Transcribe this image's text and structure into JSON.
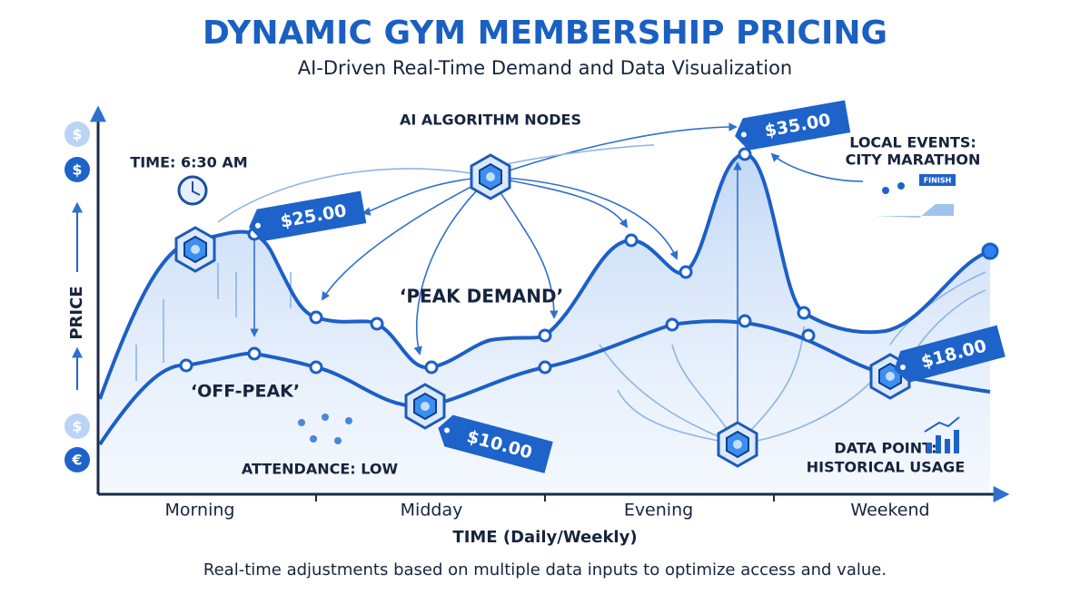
{
  "header": {
    "title": "DYNAMIC GYM MEMBERSHIP PRICING",
    "subtitle": "AI-Driven Real-Time Demand and Data Visualization"
  },
  "axes": {
    "y_label": "PRICE",
    "x_label": "TIME (Daily/Weekly)",
    "x_categories": [
      "Morning",
      "Midday",
      "Evening",
      "Weekend"
    ]
  },
  "currency_icons": [
    "$",
    "$",
    "$",
    "€"
  ],
  "price_tags": [
    "$25.00",
    "$10.00",
    "$35.00",
    "$18.00"
  ],
  "annotations": {
    "ai_nodes": "AI ALGORITHM NODES",
    "time": "TIME: 6:30 AM",
    "peak": "‘PEAK DEMAND’",
    "off_peak": "‘OFF-PEAK’",
    "attendance": "ATTENDANCE: LOW",
    "events": [
      "LOCAL EVENTS:",
      "CITY MARATHON"
    ],
    "finish": "FINISH",
    "data_point": [
      "DATA POINT:",
      "HISTORICAL USAGE"
    ]
  },
  "caption": "Real-time adjustments based on multiple data inputs to optimize access and value."
}
